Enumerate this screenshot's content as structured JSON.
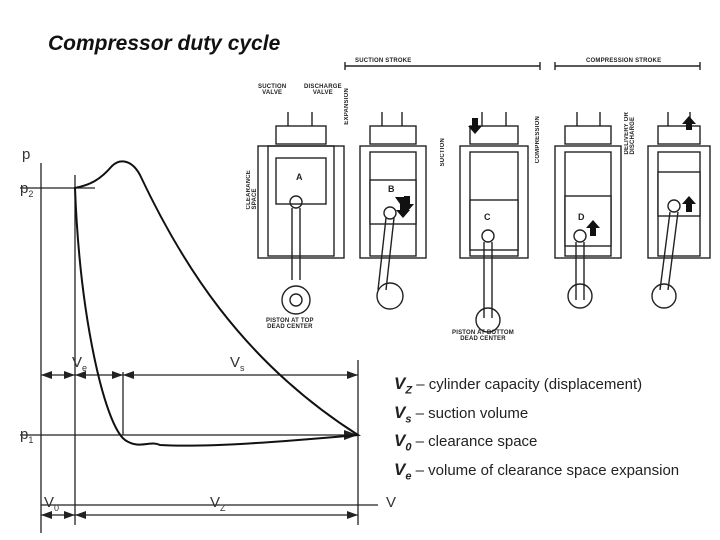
{
  "title": "Compressor duty cycle",
  "axes": {
    "p": "p",
    "p2_base": "p",
    "p2_sub": "2",
    "p1_base": "p",
    "p1_sub": "1",
    "V": "V",
    "V0_base": "V",
    "V0_sub": "0",
    "Vz_base": "V",
    "Vz_sub": "Z",
    "Vs_base": "V",
    "Vs_sub": "s",
    "Ve_base": "V",
    "Ve_sub": "e"
  },
  "diagram_labels": {
    "suction_stroke": "SUCTION STROKE",
    "compression_stroke": "COMPRESSION STROKE",
    "suction_valve": "SUCTION\nVALVE",
    "discharge_valve": "DISCHARGE\nVALVE",
    "clearance_space": "CLEARANCE\nSPACE",
    "expansion": "EXPANSION",
    "suction": "SUCTION",
    "compression": "COMPRESSION",
    "delivery": "DELIVERY OR\nDISCHARGE",
    "piston_top": "PISTON AT TOP\nDEAD CENTER",
    "piston_bottom": "PISTON AT BOTTOM\nDEAD CENTER",
    "positions": [
      "A",
      "B",
      "C",
      "D"
    ]
  },
  "legend": [
    {
      "sym": "V",
      "sub": "Z",
      "text": " – cylinder capacity (displacement)"
    },
    {
      "sym": "V",
      "sub": "s",
      "text": " – suction volume"
    },
    {
      "sym": "V",
      "sub": "0",
      "text": " – clearance space"
    },
    {
      "sym": "V",
      "sub": "e",
      "text": " – volume of clearance space expansion"
    }
  ]
}
